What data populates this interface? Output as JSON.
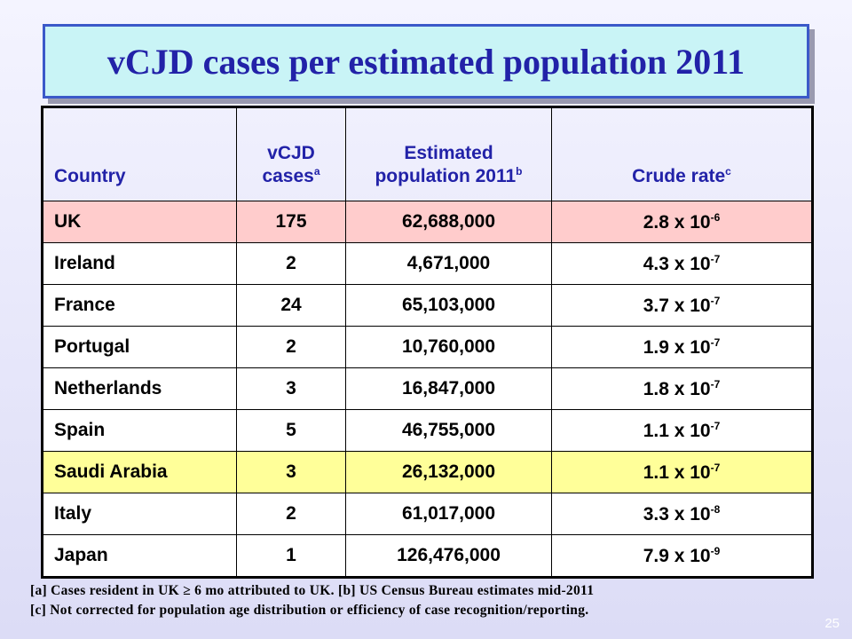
{
  "title": "vCJD cases per estimated population 2011",
  "table": {
    "headers": {
      "country": "Country",
      "cases_line1": "vCJD",
      "cases_line2": "cases",
      "cases_sup": "a",
      "pop_line1": "Estimated",
      "pop_line2": "population 2011",
      "pop_sup": "b",
      "rate": "Crude rate",
      "rate_sup": "c"
    },
    "rows": [
      {
        "country": "UK",
        "cases": "175",
        "population": "62,688,000",
        "rate_base": "2.8 x 10",
        "rate_exp": "-6",
        "highlight": "pink"
      },
      {
        "country": "Ireland",
        "cases": "2",
        "population": "4,671,000",
        "rate_base": "4.3 x 10",
        "rate_exp": "-7",
        "highlight": "white"
      },
      {
        "country": "France",
        "cases": "24",
        "population": "65,103,000",
        "rate_base": "3.7 x 10",
        "rate_exp": "-7",
        "highlight": "white"
      },
      {
        "country": "Portugal",
        "cases": "2",
        "population": "10,760,000",
        "rate_base": "1.9 x 10",
        "rate_exp": "-7",
        "highlight": "white"
      },
      {
        "country": "Netherlands",
        "cases": "3",
        "population": "16,847,000",
        "rate_base": "1.8 x 10",
        "rate_exp": "-7",
        "highlight": "white"
      },
      {
        "country": "Spain",
        "cases": "5",
        "population": "46,755,000",
        "rate_base": "1.1 x 10",
        "rate_exp": "-7",
        "highlight": "white"
      },
      {
        "country": "Saudi Arabia",
        "cases": "3",
        "population": "26,132,000",
        "rate_base": "1.1 x 10",
        "rate_exp": "-7",
        "highlight": "yellow"
      },
      {
        "country": "Italy",
        "cases": "2",
        "population": "61,017,000",
        "rate_base": "3.3 x 10",
        "rate_exp": "-8",
        "highlight": "white"
      },
      {
        "country": "Japan",
        "cases": "1",
        "population": "126,476,000",
        "rate_base": "7.9 x 10",
        "rate_exp": "-9",
        "highlight": "white"
      }
    ]
  },
  "footnotes": {
    "line1": "[a] Cases resident in UK ≥ 6 mo attributed to UK. [b] US Census Bureau estimates mid-2011",
    "line2": "[c] Not corrected for population age distribution or efficiency of case recognition/reporting."
  },
  "page_number": "25",
  "colors": {
    "title_text": "#2222a8",
    "title_bg": "#c9f4f6",
    "title_border": "#3b59c9",
    "header_text": "#2222a8",
    "uk_row": "#ffcccc",
    "saudi_row": "#ffff99"
  }
}
